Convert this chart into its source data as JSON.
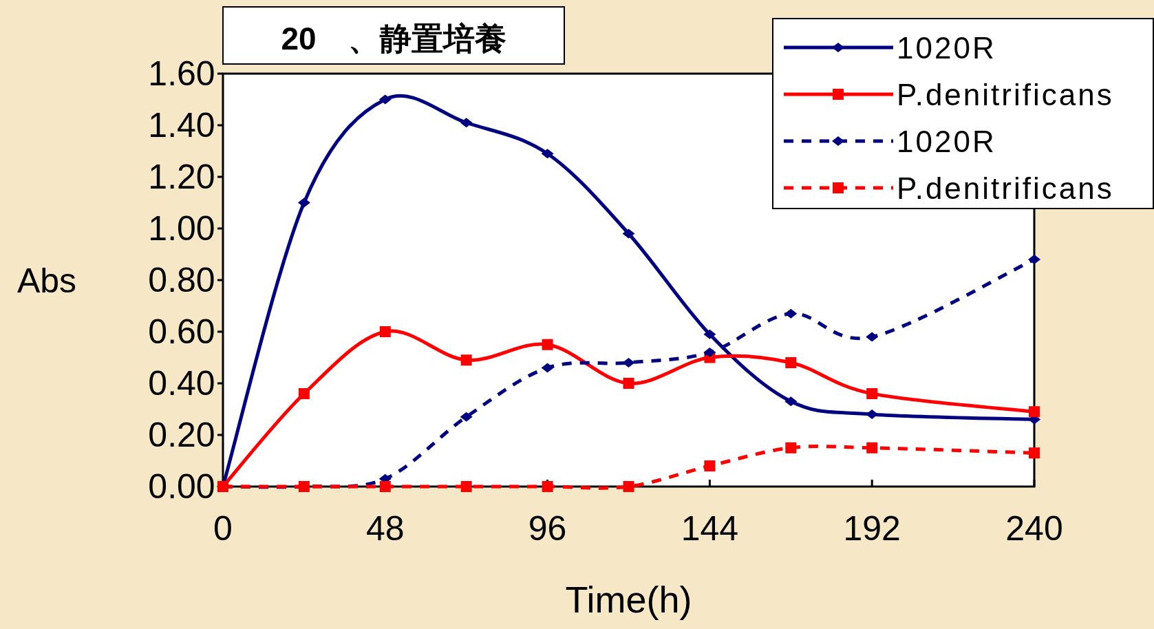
{
  "chart_data": {
    "type": "line",
    "title": "20　、静置培養",
    "xlabel": "Time(h)",
    "ylabel": "Abs",
    "x": [
      0,
      24,
      48,
      72,
      96,
      120,
      144,
      168,
      192,
      240
    ],
    "series": [
      {
        "name": "1020R",
        "color": "#000080",
        "marker": "diamond",
        "line_style": "solid",
        "values": [
          0,
          1.1,
          1.5,
          1.41,
          1.29,
          0.98,
          0.59,
          0.33,
          0.28,
          0.26
        ]
      },
      {
        "name": "P.denitrificans",
        "color": "#ff0000",
        "marker": "square",
        "line_style": "solid",
        "values": [
          0,
          0.36,
          0.6,
          0.49,
          0.55,
          0.4,
          0.5,
          0.48,
          0.36,
          0.29
        ]
      },
      {
        "name": "1020R",
        "color": "#000080",
        "marker": "diamond",
        "line_style": "dashed",
        "values": [
          0,
          0,
          0.03,
          0.27,
          0.46,
          0.48,
          0.52,
          0.67,
          0.58,
          0.88
        ]
      },
      {
        "name": "P.denitrificans",
        "color": "#ff0000",
        "marker": "square",
        "line_style": "dashed",
        "values": [
          0,
          0,
          0,
          0,
          0,
          0,
          0.08,
          0.15,
          0.15,
          0.13
        ]
      }
    ],
    "xlim": [
      0,
      240
    ],
    "xticks": [
      0,
      48,
      96,
      144,
      192,
      240
    ],
    "ylim": [
      0,
      1.6
    ],
    "yticks": [
      {
        "value": 0,
        "label": "0.00"
      },
      {
        "value": 0.2,
        "label": "0.20"
      },
      {
        "value": 0.4,
        "label": "0.40"
      },
      {
        "value": 0.6,
        "label": "0.60"
      },
      {
        "value": 0.8,
        "label": "0.80"
      },
      {
        "value": 1.0,
        "label": "1.00"
      },
      {
        "value": 1.2,
        "label": "1.20"
      },
      {
        "value": 1.4,
        "label": "1.40"
      },
      {
        "value": 1.6,
        "label": "1.60"
      }
    ],
    "grid": false,
    "legend": "top right"
  }
}
